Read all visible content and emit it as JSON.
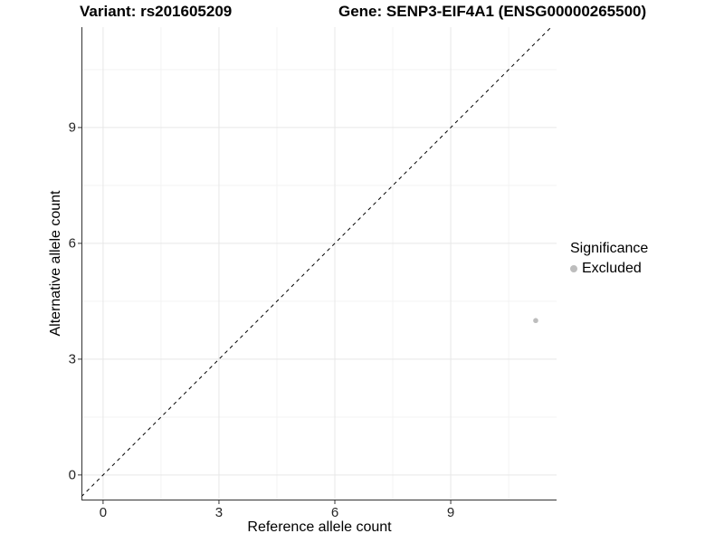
{
  "titles": {
    "variant": "Variant: rs201605209",
    "gene": "Gene: SENP3-EIF4A1 (ENSG00000265500)"
  },
  "legend": {
    "title": "Significance",
    "entries": [
      {
        "label": "Excluded",
        "color": "#bdbdbd"
      }
    ]
  },
  "chart_data": {
    "type": "scatter",
    "title": "Variant: rs201605209 | Gene: SENP3-EIF4A1 (ENSG00000265500)",
    "xlabel": "Reference allele count",
    "ylabel": "Alternative allele count",
    "x_ticks": [
      0,
      3,
      6,
      9
    ],
    "y_ticks": [
      0,
      3,
      6,
      9
    ],
    "x_minor_ticks": [
      1.5,
      4.5,
      7.5,
      10.5
    ],
    "y_minor_ticks": [
      1.5,
      4.5,
      7.5,
      10.5
    ],
    "xlim": [
      -0.56,
      11.74
    ],
    "ylim": [
      -0.66,
      11.6
    ],
    "grid": true,
    "legend_position": "right",
    "series": [
      {
        "name": "Excluded",
        "color": "#bdbdbd",
        "points": [
          {
            "x": 11.2,
            "y": 4.0
          }
        ]
      }
    ],
    "reference_line": {
      "kind": "identity y=x",
      "style": "dashed",
      "color": "#000000"
    }
  },
  "style": {
    "axis_line_color": "#333333",
    "tick_color": "#333333",
    "grid_major_color": "#e7e7e7",
    "grid_minor_color": "#f3f3f3",
    "point_radius": 2.8,
    "background": "#ffffff"
  }
}
